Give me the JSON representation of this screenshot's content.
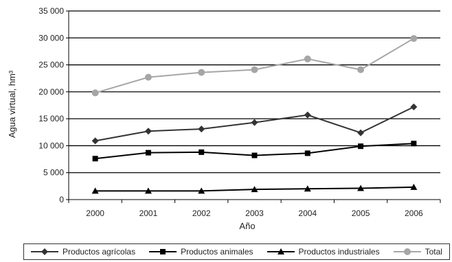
{
  "chart_data": {
    "type": "line",
    "categories": [
      "2000",
      "2001",
      "2002",
      "2003",
      "2004",
      "2005",
      "2006"
    ],
    "series": [
      {
        "name": "Productos agrícolas",
        "values": [
          10900,
          12700,
          13100,
          14300,
          15700,
          12400,
          17200
        ],
        "color": "#333333",
        "marker": "diamond"
      },
      {
        "name": "Productos animales",
        "values": [
          7600,
          8700,
          8800,
          8200,
          8600,
          9900,
          10400
        ],
        "color": "#000000",
        "marker": "square"
      },
      {
        "name": "Productos industriales",
        "values": [
          1600,
          1600,
          1600,
          1900,
          2000,
          2100,
          2300
        ],
        "color": "#000000",
        "marker": "triangle"
      },
      {
        "name": "Total",
        "values": [
          19800,
          22700,
          23600,
          24100,
          26100,
          24100,
          29900
        ],
        "color": "#a6a6a6",
        "marker": "circle"
      }
    ],
    "xlabel": "Año",
    "ylabel": "Agua virtual, hm³",
    "ylim": [
      0,
      35000
    ],
    "yticks": [
      "0",
      "5 000",
      "10 000",
      "15 000",
      "20 000",
      "25 000",
      "30 000",
      "35 000"
    ],
    "grid": true,
    "legend_position": "bottom"
  }
}
